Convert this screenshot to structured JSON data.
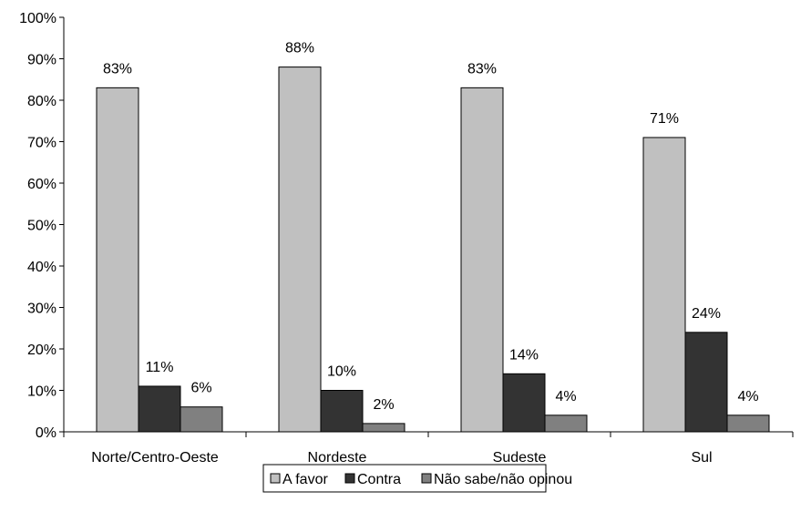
{
  "chart_data": {
    "type": "bar",
    "title": "",
    "xlabel": "",
    "ylabel": "",
    "ylim": [
      0,
      100
    ],
    "yticks": [
      0,
      10,
      20,
      30,
      40,
      50,
      60,
      70,
      80,
      90,
      100
    ],
    "ytick_suffix": "%",
    "grid": false,
    "legend_position": "bottom",
    "categories": [
      "Norte/Centro-Oeste",
      "Nordeste",
      "Sudeste",
      "Sul"
    ],
    "series": [
      {
        "name": "A favor",
        "color": "#c0c0c0",
        "values": [
          83,
          88,
          83,
          71
        ],
        "labels": [
          "83%",
          "88%",
          "83%",
          "71%"
        ]
      },
      {
        "name": "Contra",
        "color": "#333333",
        "values": [
          11,
          10,
          14,
          24
        ],
        "labels": [
          "11%",
          "10%",
          "14%",
          "24%"
        ]
      },
      {
        "name": "Não sabe/não opinou",
        "color": "#808080",
        "values": [
          6,
          2,
          4,
          4
        ],
        "labels": [
          "6%",
          "2%",
          "4%",
          "4%"
        ]
      }
    ]
  }
}
